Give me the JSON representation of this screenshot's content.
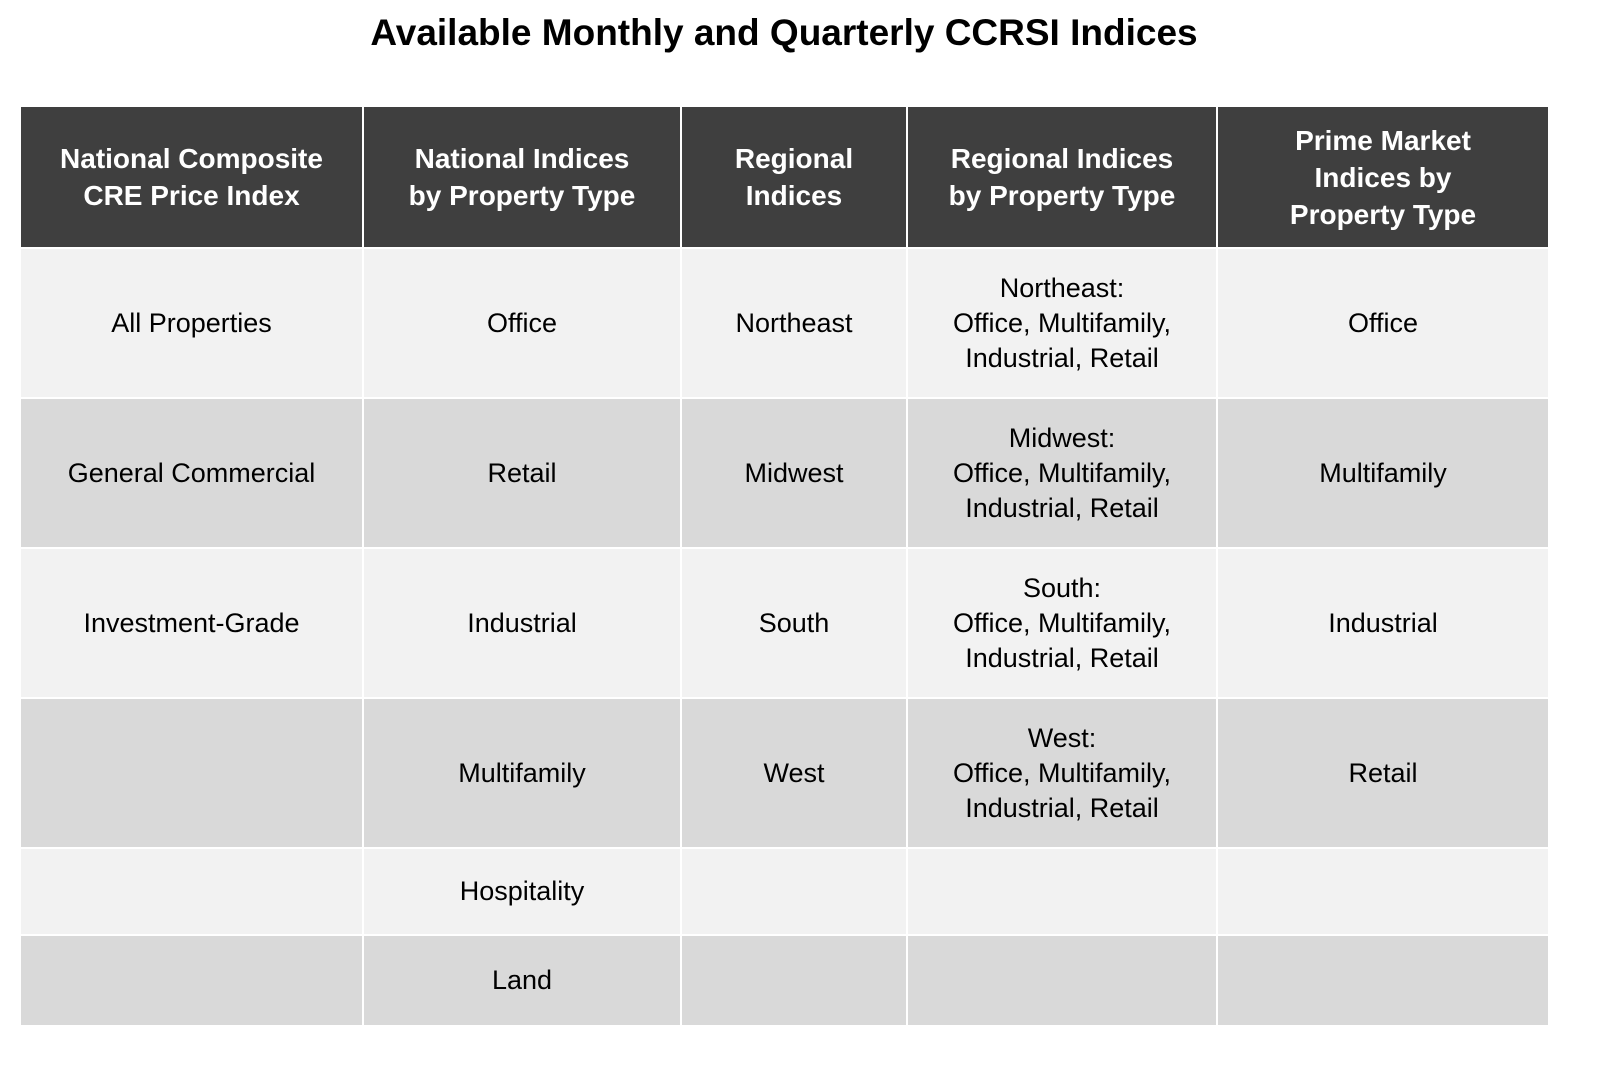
{
  "title": "Available Monthly and Quarterly CCRSI Indices",
  "columns": [
    [
      "National Composite",
      "CRE Price Index"
    ],
    [
      "National Indices",
      "by Property Type"
    ],
    [
      "Regional",
      "Indices"
    ],
    [
      "Regional Indices",
      "by Property Type"
    ],
    [
      "Prime Market",
      "Indices by",
      "Property Type"
    ]
  ],
  "rows": [
    {
      "national_composite": "All Properties",
      "national_by_type": "Office",
      "regional": "Northeast",
      "regional_by_type": [
        "Northeast:",
        "Office, Multifamily,",
        "Industrial, Retail"
      ],
      "prime_market": "Office"
    },
    {
      "national_composite": "General Commercial",
      "national_by_type": "Retail",
      "regional": "Midwest",
      "regional_by_type": [
        "Midwest:",
        "Office, Multifamily,",
        "Industrial, Retail"
      ],
      "prime_market": "Multifamily"
    },
    {
      "national_composite": "Investment-Grade",
      "national_by_type": "Industrial",
      "regional": "South",
      "regional_by_type": [
        "South:",
        "Office, Multifamily,",
        "Industrial, Retail"
      ],
      "prime_market": "Industrial"
    },
    {
      "national_composite": "",
      "national_by_type": "Multifamily",
      "regional": "West",
      "regional_by_type": [
        "West:",
        "Office, Multifamily,",
        "Industrial, Retail"
      ],
      "prime_market": "Retail"
    },
    {
      "national_composite": "",
      "national_by_type": "Hospitality",
      "regional": "",
      "regional_by_type": [],
      "prime_market": ""
    },
    {
      "national_composite": "",
      "national_by_type": "Land",
      "regional": "",
      "regional_by_type": [],
      "prime_market": ""
    }
  ],
  "colors": {
    "header_bg": "#3f3f3f",
    "row_light": "#f2f2f2",
    "row_dark": "#d9d9d9"
  }
}
